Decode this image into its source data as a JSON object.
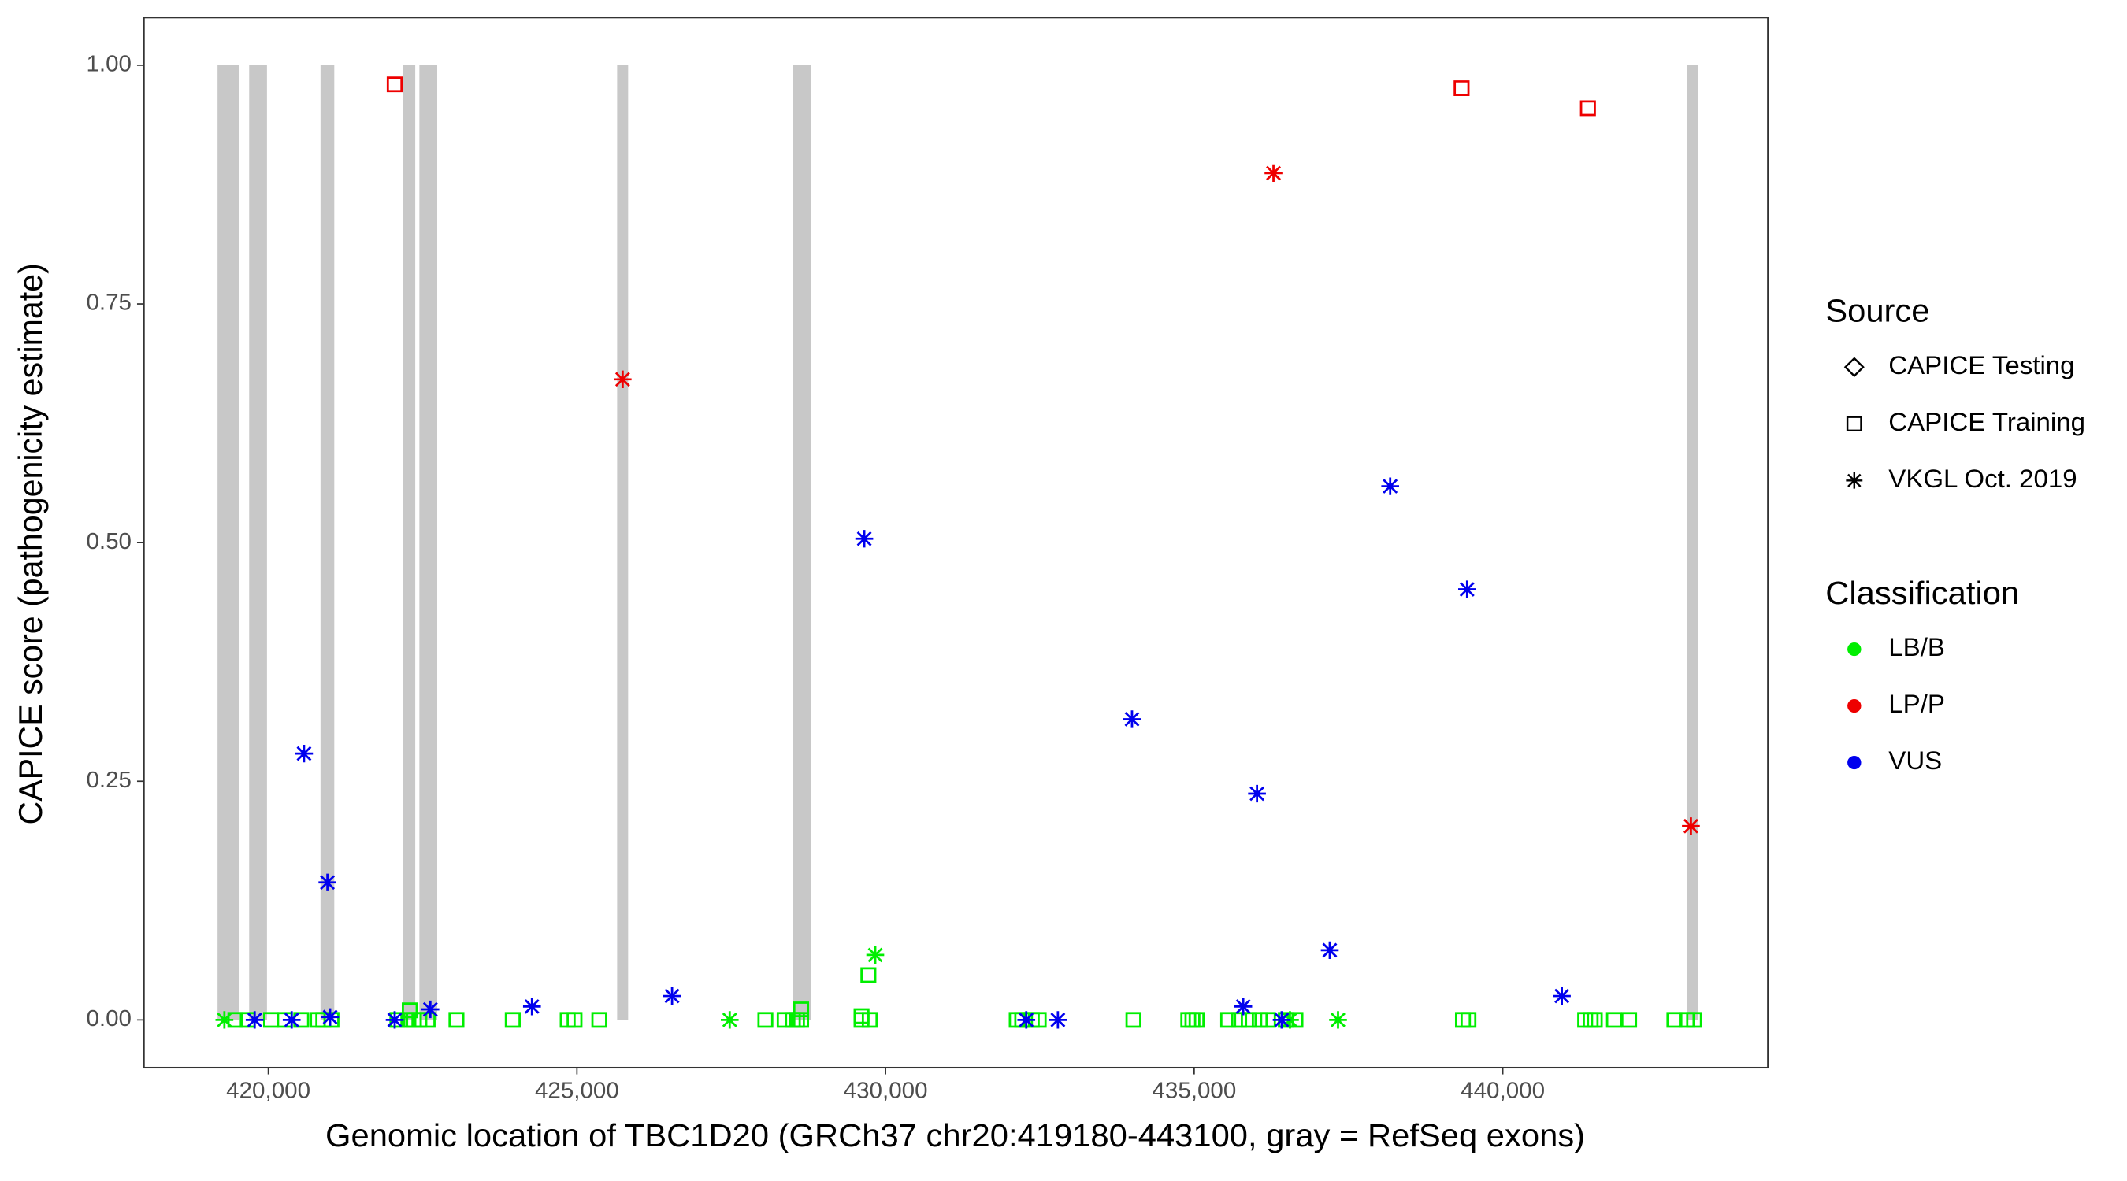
{
  "chart_data": {
    "type": "scatter",
    "xlabel": "Genomic location of TBC1D20 (GRCh37 chr20:419180-443100, gray = RefSeq exons)",
    "ylabel": "CAPICE score (pathogenicity estimate)",
    "xlim": [
      417984,
      444296
    ],
    "ylim": [
      -0.05,
      1.05
    ],
    "xticks": [
      {
        "value": 420000,
        "label": "420,000"
      },
      {
        "value": 425000,
        "label": "425,000"
      },
      {
        "value": 430000,
        "label": "430,000"
      },
      {
        "value": 435000,
        "label": "435,000"
      },
      {
        "value": 440000,
        "label": "440,000"
      }
    ],
    "yticks": [
      {
        "value": 0,
        "label": "0.00"
      },
      {
        "value": 0.25,
        "label": "0.25"
      },
      {
        "value": 0.5,
        "label": "0.50"
      },
      {
        "value": 0.75,
        "label": "0.75"
      },
      {
        "value": 1,
        "label": "1.00"
      }
    ],
    "exon_color": "#c8c8c8",
    "exons": [
      [
        419177,
        419533
      ],
      [
        419689,
        419978
      ],
      [
        420845,
        421068
      ],
      [
        422180,
        422380
      ],
      [
        422447,
        422736
      ],
      [
        425651,
        425829
      ],
      [
        428498,
        428788
      ],
      [
        442981,
        443159
      ]
    ],
    "shape_legend": {
      "title": "Source",
      "items": [
        {
          "name": "CAPICE Testing",
          "shape": "diamond"
        },
        {
          "name": "CAPICE Training",
          "shape": "square"
        },
        {
          "name": "VKGL Oct. 2019",
          "shape": "asterisk"
        }
      ]
    },
    "color_legend": {
      "title": "Classification",
      "items": [
        {
          "name": "LB/B",
          "color": "#00ee00"
        },
        {
          "name": "LP/P",
          "color": "#ee0000"
        },
        {
          "name": "VUS",
          "color": "#0000ee"
        }
      ]
    },
    "series": [
      {
        "classification": "LB/B",
        "source": "CAPICE Training",
        "x": [
          419466,
          419666,
          420044,
          420267,
          420534,
          420801,
          420890,
          421023,
          422091,
          422269,
          422358,
          422447,
          422581,
          423048,
          423960,
          424850,
          424961,
          425362,
          428053,
          428365,
          428498,
          428565,
          428632,
          429611,
          429744,
          432125,
          432214,
          432369,
          432481,
          434016,
          434905,
          434972,
          435039,
          435551,
          435729,
          435884,
          436062,
          436196,
          436485,
          436641,
          439355,
          439444,
          441335,
          441424,
          441491,
          441802,
          442047,
          442781,
          442981,
          443100,
          422291,
          428632,
          429722,
          429611
        ],
        "y": [
          0,
          0,
          0,
          0,
          0,
          0,
          0,
          0,
          0,
          0,
          0,
          0,
          0,
          0,
          0,
          0,
          0,
          0,
          0,
          0,
          0,
          0,
          0,
          0,
          0,
          0,
          0,
          0,
          0,
          0,
          0,
          0,
          0,
          0,
          0,
          0,
          0,
          0,
          0,
          0,
          0,
          0,
          0,
          0,
          0,
          0,
          0,
          0,
          0,
          0,
          0.01,
          0.011,
          0.047,
          0.004
        ]
      },
      {
        "classification": "LB/B",
        "source": "VKGL Oct. 2019",
        "x": [
          419288,
          427475,
          429833,
          436552,
          437331
        ],
        "y": [
          0,
          0,
          0.068,
          0,
          0
        ]
      },
      {
        "classification": "LP/P",
        "source": "CAPICE Training",
        "x": [
          422047,
          439333,
          441380
        ],
        "y": [
          0.98,
          0.976,
          0.955
        ]
      },
      {
        "classification": "LP/P",
        "source": "VKGL Oct. 2019",
        "x": [
          425740,
          436285,
          443048
        ],
        "y": [
          0.671,
          0.887,
          0.203
        ]
      },
      {
        "classification": "VUS",
        "source": "VKGL Oct. 2019",
        "x": [
          420578,
          420957,
          429655,
          433993,
          436018,
          437197,
          438176,
          439422,
          440957,
          419778,
          420378,
          421001,
          422047,
          422625,
          424271,
          426541,
          432280,
          432792,
          435795,
          436418
        ],
        "y": [
          0.279,
          0.144,
          0.504,
          0.315,
          0.237,
          0.073,
          0.559,
          0.451,
          0.025,
          0,
          0,
          0.003,
          0,
          0.011,
          0.014,
          0.025,
          0,
          0,
          0.014,
          0
        ]
      }
    ]
  }
}
